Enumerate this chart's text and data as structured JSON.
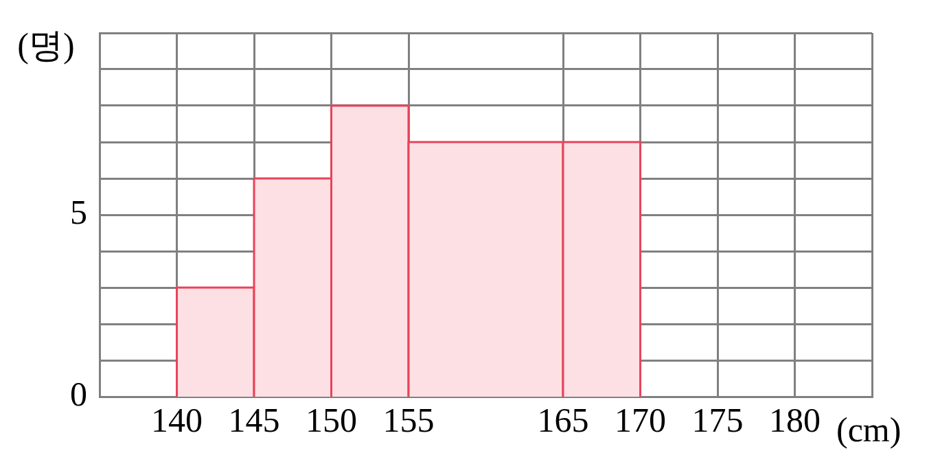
{
  "chart_data": {
    "type": "histogram",
    "bins": [
      140,
      145,
      150,
      155,
      165,
      170
    ],
    "values": [
      3,
      6,
      8,
      7,
      7
    ],
    "color": "#fde0e4",
    "xlabel": "(cm)",
    "ylabel": "(명)",
    "xlim": [
      135,
      185
    ],
    "xticks": [
      140,
      145,
      150,
      155,
      165,
      170,
      175,
      180
    ],
    "ylim": [
      0,
      10
    ],
    "yticks": [
      0,
      {
        "value": 1,
        "label": null
      },
      {
        "value": 2,
        "label": null
      },
      {
        "value": 3,
        "label": null
      },
      {
        "value": 4,
        "label": null
      },
      5,
      {
        "value": 6,
        "label": null
      },
      {
        "value": 7,
        "label": null
      },
      {
        "value": 8,
        "label": null
      },
      {
        "value": 9,
        "label": null
      },
      {
        "value": 10,
        "label": null
      }
    ],
    "grid": true
  }
}
